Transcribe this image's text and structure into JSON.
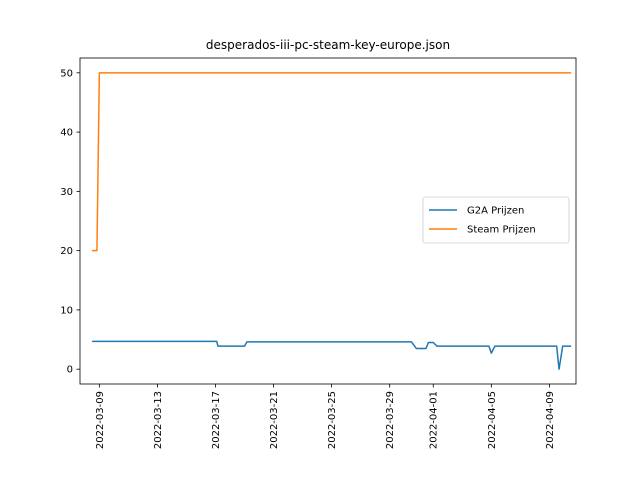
{
  "chart_data": {
    "type": "line",
    "title": "desperados-iii-pc-steam-key-europe.json",
    "xlabel": "",
    "ylabel": "",
    "x_type": "date",
    "xlim": [
      "2022-03-07T16:00",
      "2022-04-10T20:00"
    ],
    "ylim": [
      -2.5,
      52.5
    ],
    "yticks": [
      0,
      10,
      20,
      30,
      40,
      50
    ],
    "xticks": [
      "2022-03-09",
      "2022-03-13",
      "2022-03-17",
      "2022-03-21",
      "2022-03-25",
      "2022-03-29",
      "2022-04-01",
      "2022-04-05",
      "2022-04-09"
    ],
    "grid": false,
    "legend": {
      "placement": "center-right"
    },
    "series": [
      {
        "name": "G2A Prijzen",
        "color": "#1f77b4",
        "points": [
          [
            "2022-03-08T12:00",
            4.7
          ],
          [
            "2022-03-17T02:00",
            4.7
          ],
          [
            "2022-03-17T04:00",
            3.9
          ],
          [
            "2022-03-19T00:00",
            3.9
          ],
          [
            "2022-03-19T04:00",
            4.6
          ],
          [
            "2022-03-30T12:00",
            4.6
          ],
          [
            "2022-03-30T20:00",
            3.5
          ],
          [
            "2022-03-31T12:00",
            3.5
          ],
          [
            "2022-03-31T16:00",
            4.5
          ],
          [
            "2022-04-01T00:00",
            4.5
          ],
          [
            "2022-04-01T06:00",
            3.9
          ],
          [
            "2022-04-04T20:00",
            3.9
          ],
          [
            "2022-04-05T00:00",
            2.7
          ],
          [
            "2022-04-05T06:00",
            3.9
          ],
          [
            "2022-04-09T12:00",
            3.9
          ],
          [
            "2022-04-09T16:00",
            0.0
          ],
          [
            "2022-04-09T22:00",
            3.9
          ],
          [
            "2022-04-10T12:00",
            3.9
          ]
        ]
      },
      {
        "name": "Steam Prijzen",
        "color": "#ff7f0e",
        "points": [
          [
            "2022-03-08T12:00",
            20.0
          ],
          [
            "2022-03-08T20:00",
            20.0
          ],
          [
            "2022-03-09T00:00",
            50.0
          ],
          [
            "2022-04-10T12:00",
            50.0
          ]
        ]
      }
    ]
  }
}
